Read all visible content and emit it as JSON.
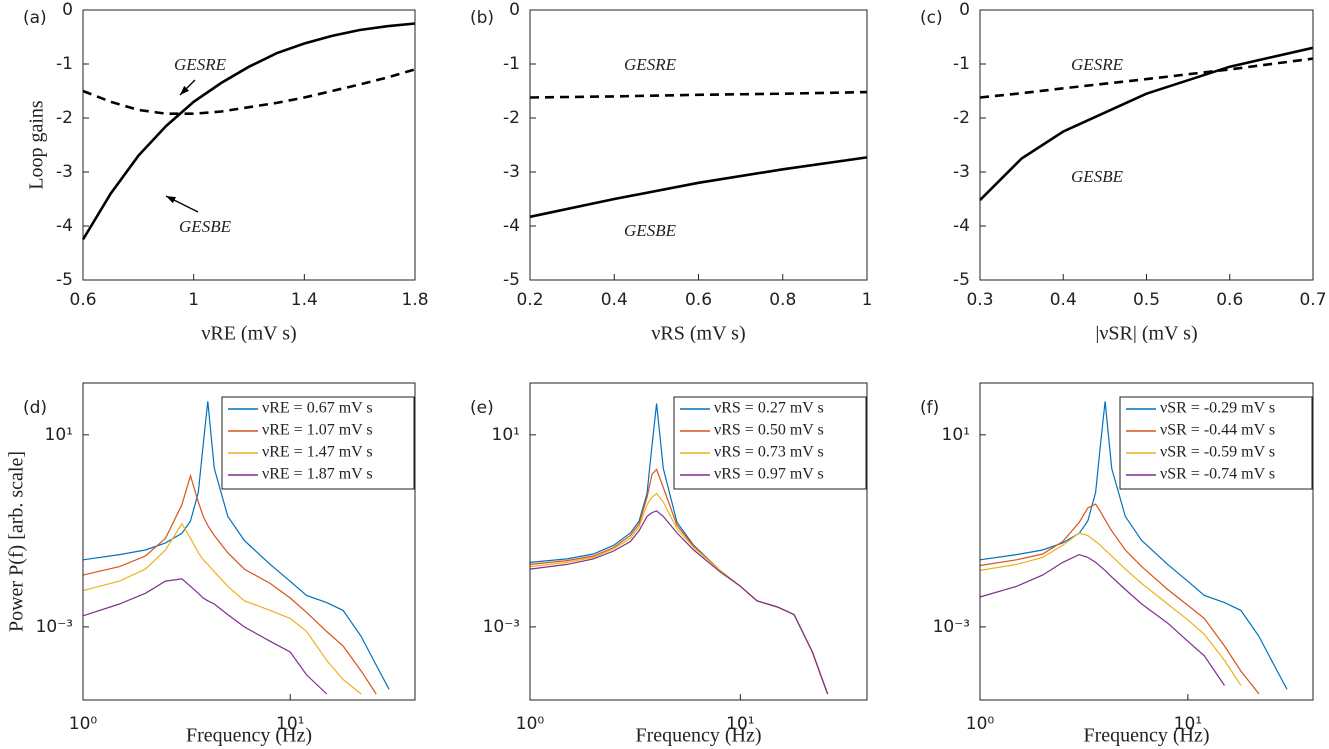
{
  "chart_data": [
    {
      "type": "line",
      "panel_label": "(a)",
      "ylabel": "Loop gains",
      "xlabel": "νRE (mV s)",
      "x": [
        0.6,
        0.7,
        0.8,
        0.9,
        1.0,
        1.1,
        1.2,
        1.3,
        1.4,
        1.5,
        1.6,
        1.7,
        1.8
      ],
      "series": [
        {
          "name": "GESRE",
          "color": "#000000",
          "linestyle": "dashed",
          "values": [
            -1.5,
            -1.7,
            -1.85,
            -1.92,
            -1.92,
            -1.88,
            -1.8,
            -1.72,
            -1.62,
            -1.5,
            -1.38,
            -1.25,
            -1.1
          ]
        },
        {
          "name": "GESBE",
          "color": "#000000",
          "linestyle": "solid",
          "values": [
            -4.25,
            -3.4,
            -2.7,
            -2.15,
            -1.7,
            -1.35,
            -1.05,
            -0.8,
            -0.62,
            -0.48,
            -0.37,
            -0.3,
            -0.25
          ]
        }
      ],
      "xlim": [
        0.6,
        1.8
      ],
      "xticks": [
        0.6,
        1,
        1.4,
        1.8
      ],
      "ylim": [
        -5,
        0
      ],
      "yticks": [
        0,
        -1,
        -2,
        -3,
        -4,
        -5
      ]
    },
    {
      "type": "line",
      "panel_label": "(b)",
      "xlabel": "νRS (mV s)",
      "x": [
        0.2,
        0.4,
        0.6,
        0.8,
        1.0
      ],
      "series": [
        {
          "name": "GESRE",
          "color": "#000000",
          "linestyle": "dashed",
          "values": [
            -1.62,
            -1.6,
            -1.57,
            -1.55,
            -1.52
          ]
        },
        {
          "name": "GESBE",
          "color": "#000000",
          "linestyle": "solid",
          "values": [
            -3.83,
            -3.5,
            -3.2,
            -2.95,
            -2.73
          ]
        }
      ],
      "xlim": [
        0.2,
        1
      ],
      "xticks": [
        0.2,
        0.4,
        0.6,
        0.8,
        1
      ],
      "ylim": [
        -5,
        0
      ],
      "yticks": [
        0,
        -1,
        -2,
        -3,
        -4,
        -5
      ]
    },
    {
      "type": "line",
      "panel_label": "(c)",
      "xlabel": "|νSR| (mV s)",
      "x": [
        0.3,
        0.35,
        0.4,
        0.5,
        0.6,
        0.7
      ],
      "series": [
        {
          "name": "GESRE",
          "color": "#000000",
          "linestyle": "dashed",
          "values": [
            -1.62,
            -1.54,
            -1.45,
            -1.28,
            -1.1,
            -0.9
          ]
        },
        {
          "name": "GESBE",
          "color": "#000000",
          "linestyle": "solid",
          "values": [
            -3.52,
            -2.75,
            -2.25,
            -1.55,
            -1.05,
            -0.7
          ]
        }
      ],
      "xlim": [
        0.3,
        0.7
      ],
      "xticks": [
        0.3,
        0.4,
        0.5,
        0.6,
        0.7
      ],
      "ylim": [
        -5,
        0
      ],
      "yticks": [
        0,
        -1,
        -2,
        -3,
        -4,
        -5
      ]
    },
    {
      "type": "line",
      "panel_label": "(d)",
      "ylabel": "Power P(f) [arb. scale]",
      "xlabel": "Frequency (Hz)",
      "xscale": "log",
      "yscale": "log",
      "legend": "upper right",
      "x": [
        1,
        1.5,
        2,
        2.5,
        3,
        3.3,
        3.6,
        3.8,
        4,
        4.3,
        5,
        6,
        8,
        10,
        12,
        15,
        18,
        22,
        26,
        30
      ],
      "series": [
        {
          "name": "νRE = 0.67 mV s",
          "color": "#0072bd",
          "values": [
            0.025,
            0.032,
            0.04,
            0.056,
            0.089,
            0.16,
            0.63,
            6.3,
            50,
            2,
            0.2,
            0.063,
            0.02,
            0.0089,
            0.0045,
            0.0032,
            0.0022,
            0.00063,
            0.00016,
            5e-05
          ]
        },
        {
          "name": "νRE = 1.07 mV s",
          "color": "#d95319",
          "values": [
            0.012,
            0.018,
            0.03,
            0.07,
            0.35,
            1.4,
            0.4,
            0.2,
            0.13,
            0.08,
            0.035,
            0.016,
            0.008,
            0.004,
            0.002,
            0.0008,
            0.0004,
            0.00012,
            4e-05,
            null
          ]
        },
        {
          "name": "νRE = 1.47 mV s",
          "color": "#edb120",
          "values": [
            0.0057,
            0.009,
            0.016,
            0.04,
            0.14,
            0.07,
            0.035,
            0.025,
            0.02,
            0.014,
            0.007,
            0.0035,
            0.0022,
            0.0015,
            0.0008,
            0.0002,
            8e-05,
            4e-05,
            null,
            null
          ]
        },
        {
          "name": "νRE = 1.87 mV s",
          "color": "#7e2f8e",
          "values": [
            0.0017,
            0.003,
            0.005,
            0.009,
            0.01,
            0.007,
            0.005,
            0.004,
            0.0035,
            0.003,
            0.0018,
            0.001,
            0.0005,
            0.0003,
            0.0001,
            4e-05,
            null,
            null,
            null,
            null
          ]
        }
      ],
      "xlim": [
        1,
        40
      ],
      "xticks": [
        {
          "value": 1,
          "label": "10⁰"
        },
        {
          "value": 10,
          "label": "10¹"
        }
      ],
      "ylim": [
        3e-05,
        120
      ],
      "yticks": [
        {
          "value": 0.001,
          "label": "10⁻³"
        },
        {
          "value": 10,
          "label": "10¹"
        }
      ]
    },
    {
      "type": "line",
      "panel_label": "(e)",
      "xlabel": "Frequency (Hz)",
      "xscale": "log",
      "yscale": "log",
      "legend": "upper right",
      "x": [
        1,
        1.5,
        2,
        2.5,
        3,
        3.3,
        3.6,
        3.8,
        4,
        4.3,
        5,
        6,
        8,
        10,
        12,
        15,
        18,
        22,
        26,
        30
      ],
      "series": [
        {
          "name": "νRS = 0.27 mV s",
          "color": "#0072bd",
          "values": [
            0.022,
            0.026,
            0.033,
            0.05,
            0.09,
            0.16,
            0.6,
            6,
            45,
            2,
            0.15,
            0.05,
            0.015,
            0.007,
            0.0035,
            0.0026,
            0.0018,
            0.0003,
            4e-05,
            null
          ]
        },
        {
          "name": "νRS = 0.50 mV s",
          "color": "#d95319",
          "values": [
            0.02,
            0.024,
            0.03,
            0.045,
            0.08,
            0.14,
            0.5,
            1.5,
            1.9,
            0.8,
            0.13,
            0.048,
            0.015,
            0.007,
            0.0035,
            0.0026,
            0.0018,
            0.0003,
            4e-05,
            null
          ]
        },
        {
          "name": "νRS = 0.73 mV s",
          "color": "#edb120",
          "values": [
            0.018,
            0.022,
            0.028,
            0.042,
            0.07,
            0.12,
            0.35,
            0.5,
            0.6,
            0.4,
            0.11,
            0.045,
            0.015,
            0.007,
            0.0035,
            0.0026,
            0.0018,
            0.0003,
            4e-05,
            null
          ]
        },
        {
          "name": "νRS = 0.97 mV s",
          "color": "#7e2f8e",
          "values": [
            0.016,
            0.02,
            0.026,
            0.038,
            0.06,
            0.1,
            0.2,
            0.24,
            0.26,
            0.2,
            0.09,
            0.04,
            0.014,
            0.007,
            0.0035,
            0.0026,
            0.0018,
            0.0003,
            4e-05,
            null
          ]
        }
      ],
      "xlim": [
        1,
        40
      ],
      "xticks": [
        {
          "value": 1,
          "label": "10⁰"
        },
        {
          "value": 10,
          "label": "10¹"
        }
      ],
      "ylim": [
        3e-05,
        120
      ],
      "yticks": [
        {
          "value": 0.001,
          "label": "10⁻³"
        },
        {
          "value": 10,
          "label": "10¹"
        }
      ]
    },
    {
      "type": "line",
      "panel_label": "(f)",
      "xlabel": "Frequency (Hz)",
      "xscale": "log",
      "yscale": "log",
      "legend": "upper right",
      "x": [
        1,
        1.5,
        2,
        2.5,
        3,
        3.3,
        3.6,
        3.8,
        4,
        4.3,
        5,
        6,
        8,
        10,
        12,
        15,
        18,
        22,
        26,
        30
      ],
      "series": [
        {
          "name": "νSR = -0.29 mV s",
          "color": "#0072bd",
          "values": [
            0.025,
            0.032,
            0.04,
            0.056,
            0.089,
            0.16,
            0.63,
            6.3,
            50,
            2,
            0.2,
            0.063,
            0.02,
            0.0089,
            0.0045,
            0.0032,
            0.0022,
            0.00063,
            0.00016,
            5e-05
          ]
        },
        {
          "name": "νSR = -0.44 mV s",
          "color": "#d95319",
          "values": [
            0.019,
            0.025,
            0.033,
            0.06,
            0.15,
            0.3,
            0.36,
            0.25,
            0.17,
            0.1,
            0.04,
            0.018,
            0.006,
            0.0028,
            0.0015,
            0.0004,
            0.00012,
            4e-05,
            null,
            null
          ]
        },
        {
          "name": "νSR = -0.59 mV s",
          "color": "#edb120",
          "values": [
            0.015,
            0.02,
            0.028,
            0.05,
            0.09,
            0.08,
            0.06,
            0.05,
            0.04,
            0.03,
            0.016,
            0.008,
            0.003,
            0.0014,
            0.0007,
            0.0002,
            6e-05,
            null,
            null,
            null
          ]
        },
        {
          "name": "νSR = -0.74 mV s",
          "color": "#7e2f8e",
          "values": [
            0.0042,
            0.007,
            0.012,
            0.022,
            0.032,
            0.028,
            0.022,
            0.018,
            0.015,
            0.011,
            0.006,
            0.003,
            0.0012,
            0.0005,
            0.00025,
            6e-05,
            null,
            null,
            null,
            null
          ]
        }
      ],
      "xlim": [
        1,
        40
      ],
      "xticks": [
        {
          "value": 1,
          "label": "10⁰"
        },
        {
          "value": 10,
          "label": "10¹"
        }
      ],
      "ylim": [
        3e-05,
        120
      ],
      "yticks": [
        {
          "value": 0.001,
          "label": "10⁻³"
        },
        {
          "value": 10,
          "label": "10¹"
        }
      ]
    }
  ]
}
